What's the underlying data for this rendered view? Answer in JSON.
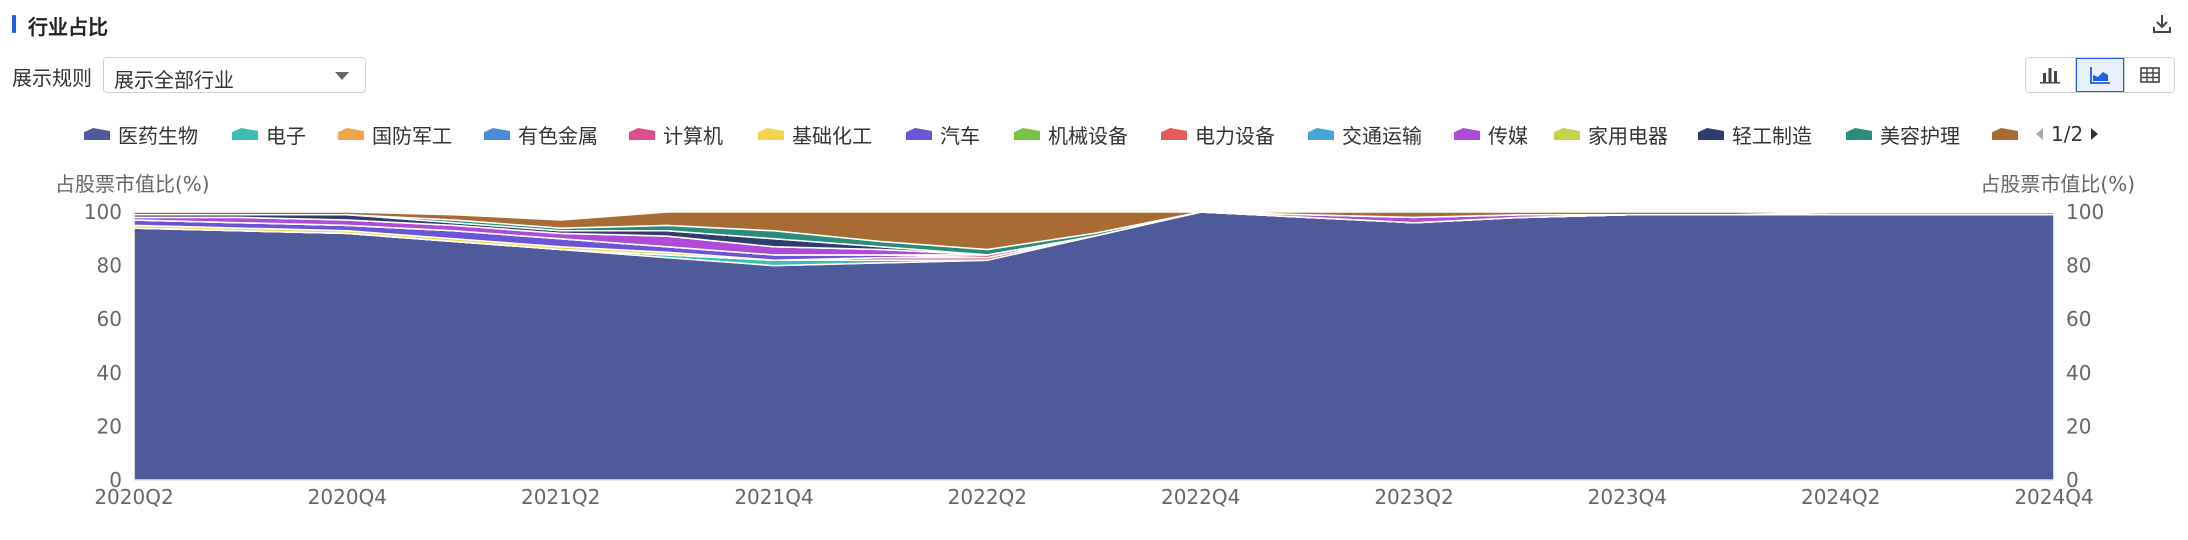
{
  "header": {
    "title": "行业占比"
  },
  "controls": {
    "rule_label": "展示规则",
    "rule_value": "展示全部行业"
  },
  "pager": {
    "text": "1/2"
  },
  "chart_data": {
    "type": "area",
    "stacked": true,
    "title": "行业占比",
    "ylabel_left": "占股票市值比(%)",
    "ylabel_right": "占股票市值比(%)",
    "ylim": [
      0,
      100
    ],
    "yticks": [
      0,
      20,
      40,
      60,
      80,
      100
    ],
    "x": [
      "2020Q2",
      "2020Q3",
      "2020Q4",
      "2021Q1",
      "2021Q2",
      "2021Q3",
      "2021Q4",
      "2022Q1",
      "2022Q2",
      "2022Q3",
      "2022Q4",
      "2023Q1",
      "2023Q2",
      "2023Q3",
      "2023Q4",
      "2024Q1",
      "2024Q2",
      "2024Q3",
      "2024Q4"
    ],
    "xticks": [
      "2020Q2",
      "2020Q4",
      "2021Q2",
      "2021Q4",
      "2022Q2",
      "2022Q4",
      "2023Q2",
      "2023Q4",
      "2024Q2",
      "2024Q4"
    ],
    "legend_position": "top",
    "series": [
      {
        "name": "医药生物",
        "color": "#4e5a9a",
        "values": [
          94,
          93,
          92,
          89,
          86,
          83,
          80,
          81,
          82,
          91,
          100,
          98,
          96,
          98,
          99,
          99,
          99,
          99,
          99
        ]
      },
      {
        "name": "电子",
        "color": "#3dbdb5",
        "values": [
          0,
          0,
          0,
          0,
          0,
          1,
          2,
          1,
          0,
          0,
          0,
          0,
          0,
          0,
          0,
          0,
          0,
          0,
          0
        ]
      },
      {
        "name": "国防军工",
        "color": "#f0a54b",
        "values": [
          0,
          0,
          0,
          0,
          0,
          0,
          0,
          0,
          0,
          0,
          0,
          0,
          0,
          0,
          0,
          0,
          1,
          1,
          1
        ]
      },
      {
        "name": "有色金属",
        "color": "#4a8bd6",
        "values": [
          0,
          0,
          0,
          0,
          0,
          0,
          0,
          0,
          0,
          0,
          0,
          0,
          0,
          0,
          0,
          0,
          0,
          0,
          0
        ]
      },
      {
        "name": "计算机",
        "color": "#e04a8e",
        "values": [
          0,
          0,
          0,
          0,
          0,
          0,
          0,
          1,
          1,
          0,
          0,
          0,
          0,
          0,
          0,
          0,
          0,
          0,
          0
        ]
      },
      {
        "name": "基础化工",
        "color": "#f2d54a",
        "values": [
          1,
          1,
          1,
          1,
          1,
          1,
          0,
          0,
          0,
          0,
          0,
          0,
          0,
          0,
          0,
          0,
          0,
          0,
          0
        ]
      },
      {
        "name": "汽车",
        "color": "#6a55d6",
        "values": [
          2,
          2,
          2,
          3,
          3,
          2,
          2,
          1,
          0,
          0,
          0,
          0,
          0,
          0,
          0,
          0,
          0,
          0,
          0
        ]
      },
      {
        "name": "机械设备",
        "color": "#7cc242",
        "values": [
          0,
          0,
          0,
          0,
          0,
          0,
          0,
          0,
          0,
          0,
          0,
          0,
          0,
          0,
          0,
          0,
          0,
          0,
          0
        ]
      },
      {
        "name": "电力设备",
        "color": "#e55b5b",
        "values": [
          0,
          0,
          0,
          0,
          0,
          0,
          0,
          0,
          1,
          0,
          0,
          0,
          0,
          0,
          0,
          0,
          0,
          0,
          0
        ]
      },
      {
        "name": "交通运输",
        "color": "#45a6d6",
        "values": [
          0,
          0,
          0,
          0,
          0,
          0,
          0,
          0,
          0,
          0,
          0,
          0,
          0,
          0,
          0,
          0,
          0,
          0,
          0
        ]
      },
      {
        "name": "传媒",
        "color": "#b04ad8",
        "values": [
          1,
          2,
          2,
          2,
          2,
          4,
          3,
          2,
          0,
          0,
          0,
          1,
          2,
          1,
          0,
          0,
          0,
          0,
          0
        ]
      },
      {
        "name": "家用电器",
        "color": "#c5d34a",
        "values": [
          0,
          0,
          0,
          0,
          0,
          0,
          0,
          0,
          0,
          0,
          0,
          0,
          0,
          0,
          0,
          0,
          0,
          0,
          0
        ]
      },
      {
        "name": "轻工制造",
        "color": "#2f3d6e",
        "values": [
          1,
          1,
          2,
          1,
          1,
          2,
          3,
          1,
          0,
          0,
          0,
          0,
          0,
          0,
          0,
          0,
          0,
          0,
          0
        ]
      },
      {
        "name": "美容护理",
        "color": "#2a8c7a",
        "values": [
          0,
          0,
          0,
          1,
          1,
          2,
          3,
          2,
          2,
          1,
          0,
          0,
          0,
          0,
          0,
          0,
          0,
          0,
          0
        ]
      },
      {
        "name": "",
        "color": "#a86b34",
        "values": [
          1,
          1,
          1,
          2,
          3,
          5,
          7,
          11,
          14,
          8,
          0,
          1,
          2,
          1,
          1,
          1,
          0,
          0,
          0
        ]
      }
    ]
  }
}
